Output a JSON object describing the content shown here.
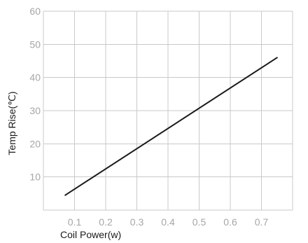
{
  "chart_data": {
    "type": "line",
    "title": "",
    "xlabel": "Coil Power(w)",
    "ylabel": "Temp Rise(℃)",
    "xlim": [
      0.0,
      0.8
    ],
    "ylim": [
      0,
      60
    ],
    "x_ticks": [
      0.1,
      0.2,
      0.3,
      0.4,
      0.5,
      0.6,
      0.7
    ],
    "x_tick_labels": [
      "0.1",
      "0.2",
      "0.3",
      "0.4",
      "0.5",
      "0.6",
      "0.7"
    ],
    "y_ticks": [
      10,
      20,
      30,
      40,
      50,
      60
    ],
    "y_tick_labels": [
      "10",
      "20",
      "30",
      "40",
      "50",
      "60"
    ],
    "grid": true,
    "legend": "none",
    "series": [
      {
        "x": [
          0.07,
          0.75
        ],
        "y": [
          4.5,
          46
        ],
        "color": "#1a1a1a"
      }
    ]
  }
}
